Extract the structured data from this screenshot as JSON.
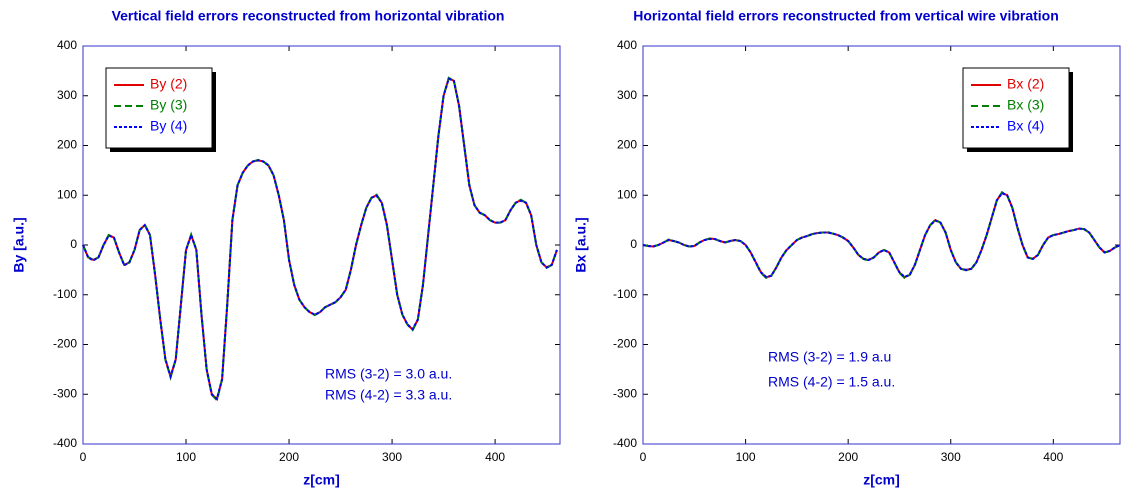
{
  "chart_data": [
    {
      "type": "line",
      "title": "Vertical field errors reconstructed from horizontal vibration",
      "xlabel": "z[cm]",
      "ylabel": "By [a.u.]",
      "xlim": [
        0,
        463
      ],
      "ylim": [
        -400,
        400
      ],
      "xticks": [
        0,
        100,
        200,
        300,
        400
      ],
      "yticks": [
        -400,
        -300,
        -200,
        -100,
        0,
        100,
        200,
        300,
        400
      ],
      "legend": "upper left",
      "annotations": [
        "RMS (3-2) = 3.0 a.u.",
        "RMS (4-2) = 3.3 a.u."
      ],
      "x": [
        0,
        5,
        10,
        15,
        20,
        25,
        30,
        35,
        40,
        45,
        50,
        55,
        60,
        65,
        70,
        75,
        80,
        85,
        90,
        95,
        100,
        105,
        110,
        115,
        120,
        125,
        130,
        135,
        140,
        145,
        150,
        155,
        160,
        165,
        170,
        175,
        180,
        185,
        190,
        195,
        200,
        205,
        210,
        215,
        220,
        225,
        230,
        235,
        240,
        245,
        250,
        255,
        260,
        265,
        270,
        275,
        280,
        285,
        290,
        295,
        300,
        305,
        310,
        315,
        320,
        325,
        330,
        335,
        340,
        345,
        350,
        355,
        360,
        365,
        370,
        375,
        380,
        385,
        390,
        395,
        400,
        405,
        410,
        415,
        420,
        425,
        430,
        435,
        440,
        445,
        450,
        455,
        460
      ],
      "series": [
        {
          "name": "By (2)",
          "color": "#e00000",
          "dash": "solid",
          "values": [
            0,
            -25,
            -30,
            -25,
            0,
            20,
            15,
            -15,
            -40,
            -35,
            -10,
            30,
            40,
            20,
            -60,
            -150,
            -230,
            -265,
            -230,
            -120,
            -10,
            20,
            -10,
            -140,
            -250,
            -300,
            -310,
            -270,
            -120,
            50,
            120,
            145,
            160,
            168,
            170,
            168,
            160,
            140,
            100,
            50,
            -30,
            -80,
            -110,
            -125,
            -135,
            -140,
            -135,
            -125,
            -120,
            -115,
            -105,
            -90,
            -50,
            0,
            40,
            75,
            95,
            100,
            85,
            40,
            -30,
            -100,
            -140,
            -160,
            -170,
            -150,
            -80,
            20,
            120,
            220,
            300,
            335,
            330,
            280,
            200,
            120,
            80,
            65,
            60,
            50,
            45,
            45,
            50,
            70,
            85,
            90,
            85,
            60,
            0,
            -35,
            -45,
            -40,
            -10
          ]
        },
        {
          "name": "By (3)",
          "color": "#008000",
          "dash": "dashed",
          "values": [
            0,
            -24,
            -30,
            -25,
            1,
            20,
            15,
            -15,
            -40,
            -35,
            -10,
            30,
            41,
            20,
            -60,
            -150,
            -231,
            -266,
            -230,
            -120,
            -10,
            21,
            -10,
            -140,
            -250,
            -301,
            -312,
            -270,
            -120,
            50,
            120,
            145,
            160,
            168,
            171,
            168,
            160,
            140,
            100,
            50,
            -30,
            -80,
            -110,
            -125,
            -135,
            -141,
            -135,
            -125,
            -120,
            -115,
            -105,
            -90,
            -50,
            0,
            40,
            75,
            95,
            101,
            85,
            40,
            -30,
            -100,
            -140,
            -160,
            -171,
            -150,
            -80,
            20,
            120,
            220,
            300,
            336,
            330,
            280,
            200,
            120,
            80,
            65,
            60,
            50,
            45,
            45,
            50,
            70,
            85,
            91,
            85,
            60,
            0,
            -35,
            -46,
            -40,
            -10
          ]
        },
        {
          "name": "By (4)",
          "color": "#0000ff",
          "dash": "dotted",
          "values": [
            0,
            -25,
            -31,
            -25,
            0,
            19,
            15,
            -15,
            -41,
            -35,
            -10,
            30,
            40,
            20,
            -60,
            -150,
            -230,
            -264,
            -230,
            -120,
            -10,
            20,
            -10,
            -140,
            -250,
            -300,
            -309,
            -270,
            -120,
            50,
            120,
            145,
            160,
            168,
            170,
            168,
            160,
            140,
            100,
            50,
            -30,
            -80,
            -110,
            -125,
            -135,
            -140,
            -135,
            -125,
            -120,
            -115,
            -105,
            -90,
            -50,
            0,
            40,
            75,
            95,
            99,
            85,
            40,
            -30,
            -100,
            -140,
            -160,
            -169,
            -150,
            -80,
            20,
            120,
            220,
            300,
            334,
            330,
            280,
            200,
            120,
            80,
            65,
            60,
            50,
            45,
            45,
            50,
            70,
            85,
            89,
            85,
            60,
            0,
            -35,
            -45,
            -40,
            -10
          ]
        }
      ]
    },
    {
      "type": "line",
      "title": "Horizontal field errors reconstructed from vertical wire vibration",
      "xlabel": "z[cm]",
      "ylabel": "Bx [a.u.]",
      "xlim": [
        0,
        465
      ],
      "ylim": [
        -400,
        400
      ],
      "xticks": [
        0,
        100,
        200,
        300,
        400
      ],
      "yticks": [
        -400,
        -300,
        -200,
        -100,
        0,
        100,
        200,
        300,
        400
      ],
      "legend": "upper right",
      "annotations": [
        "RMS (3-2) = 1.9 a.u",
        "RMS (4-2) = 1.5 a.u."
      ],
      "x": [
        0,
        5,
        10,
        15,
        20,
        25,
        30,
        35,
        40,
        45,
        50,
        55,
        60,
        65,
        70,
        75,
        80,
        85,
        90,
        95,
        100,
        105,
        110,
        115,
        120,
        125,
        130,
        135,
        140,
        145,
        150,
        155,
        160,
        165,
        170,
        175,
        180,
        185,
        190,
        195,
        200,
        205,
        210,
        215,
        220,
        225,
        230,
        235,
        240,
        245,
        250,
        255,
        260,
        265,
        270,
        275,
        280,
        285,
        290,
        295,
        300,
        305,
        310,
        315,
        320,
        325,
        330,
        335,
        340,
        345,
        350,
        355,
        360,
        365,
        370,
        375,
        380,
        385,
        390,
        395,
        400,
        405,
        410,
        415,
        420,
        425,
        430,
        435,
        440,
        445,
        450,
        455,
        460,
        465
      ],
      "series": [
        {
          "name": "Bx (2)",
          "color": "#e00000",
          "dash": "solid",
          "values": [
            0,
            -2,
            -3,
            0,
            5,
            10,
            8,
            5,
            0,
            -3,
            -2,
            5,
            10,
            13,
            12,
            8,
            5,
            8,
            10,
            8,
            0,
            -15,
            -35,
            -55,
            -65,
            -62,
            -45,
            -25,
            -10,
            0,
            10,
            15,
            18,
            22,
            24,
            25,
            25,
            23,
            20,
            15,
            8,
            -5,
            -20,
            -28,
            -30,
            -25,
            -15,
            -10,
            -15,
            -35,
            -55,
            -65,
            -60,
            -40,
            -10,
            20,
            40,
            50,
            45,
            25,
            -10,
            -35,
            -48,
            -50,
            -48,
            -35,
            -10,
            20,
            55,
            90,
            105,
            100,
            75,
            35,
            0,
            -25,
            -28,
            -20,
            0,
            15,
            20,
            22,
            25,
            28,
            30,
            33,
            32,
            25,
            10,
            -5,
            -15,
            -12,
            -5,
            0
          ]
        },
        {
          "name": "Bx (3)",
          "color": "#008000",
          "dash": "dashed",
          "values": [
            0,
            -2,
            -3,
            0,
            5,
            11,
            8,
            5,
            0,
            -3,
            -2,
            5,
            10,
            13,
            12,
            8,
            5,
            8,
            10,
            8,
            0,
            -15,
            -36,
            -56,
            -66,
            -62,
            -45,
            -25,
            -10,
            0,
            10,
            15,
            18,
            22,
            24,
            25,
            26,
            23,
            20,
            15,
            8,
            -5,
            -20,
            -28,
            -31,
            -25,
            -15,
            -10,
            -15,
            -35,
            -56,
            -66,
            -60,
            -40,
            -10,
            20,
            40,
            51,
            45,
            25,
            -10,
            -35,
            -48,
            -51,
            -48,
            -35,
            -10,
            20,
            55,
            90,
            106,
            100,
            75,
            35,
            0,
            -25,
            -28,
            -20,
            0,
            15,
            20,
            22,
            25,
            28,
            30,
            33,
            32,
            25,
            10,
            -5,
            -15,
            -12,
            -5,
            0
          ]
        },
        {
          "name": "Bx (4)",
          "color": "#0000ff",
          "dash": "dotted",
          "values": [
            0,
            -2,
            -3,
            0,
            5,
            10,
            8,
            5,
            0,
            -3,
            -2,
            5,
            10,
            12,
            12,
            8,
            5,
            8,
            10,
            8,
            0,
            -15,
            -35,
            -55,
            -64,
            -62,
            -45,
            -25,
            -10,
            0,
            10,
            15,
            18,
            22,
            24,
            25,
            25,
            23,
            20,
            15,
            8,
            -5,
            -20,
            -28,
            -30,
            -25,
            -15,
            -10,
            -15,
            -35,
            -55,
            -64,
            -60,
            -40,
            -10,
            20,
            40,
            49,
            45,
            25,
            -10,
            -35,
            -48,
            -50,
            -48,
            -35,
            -10,
            20,
            55,
            90,
            104,
            100,
            75,
            35,
            0,
            -25,
            -28,
            -20,
            0,
            15,
            20,
            22,
            25,
            28,
            30,
            33,
            32,
            25,
            10,
            -5,
            -15,
            -12,
            -5,
            0
          ]
        }
      ]
    }
  ]
}
